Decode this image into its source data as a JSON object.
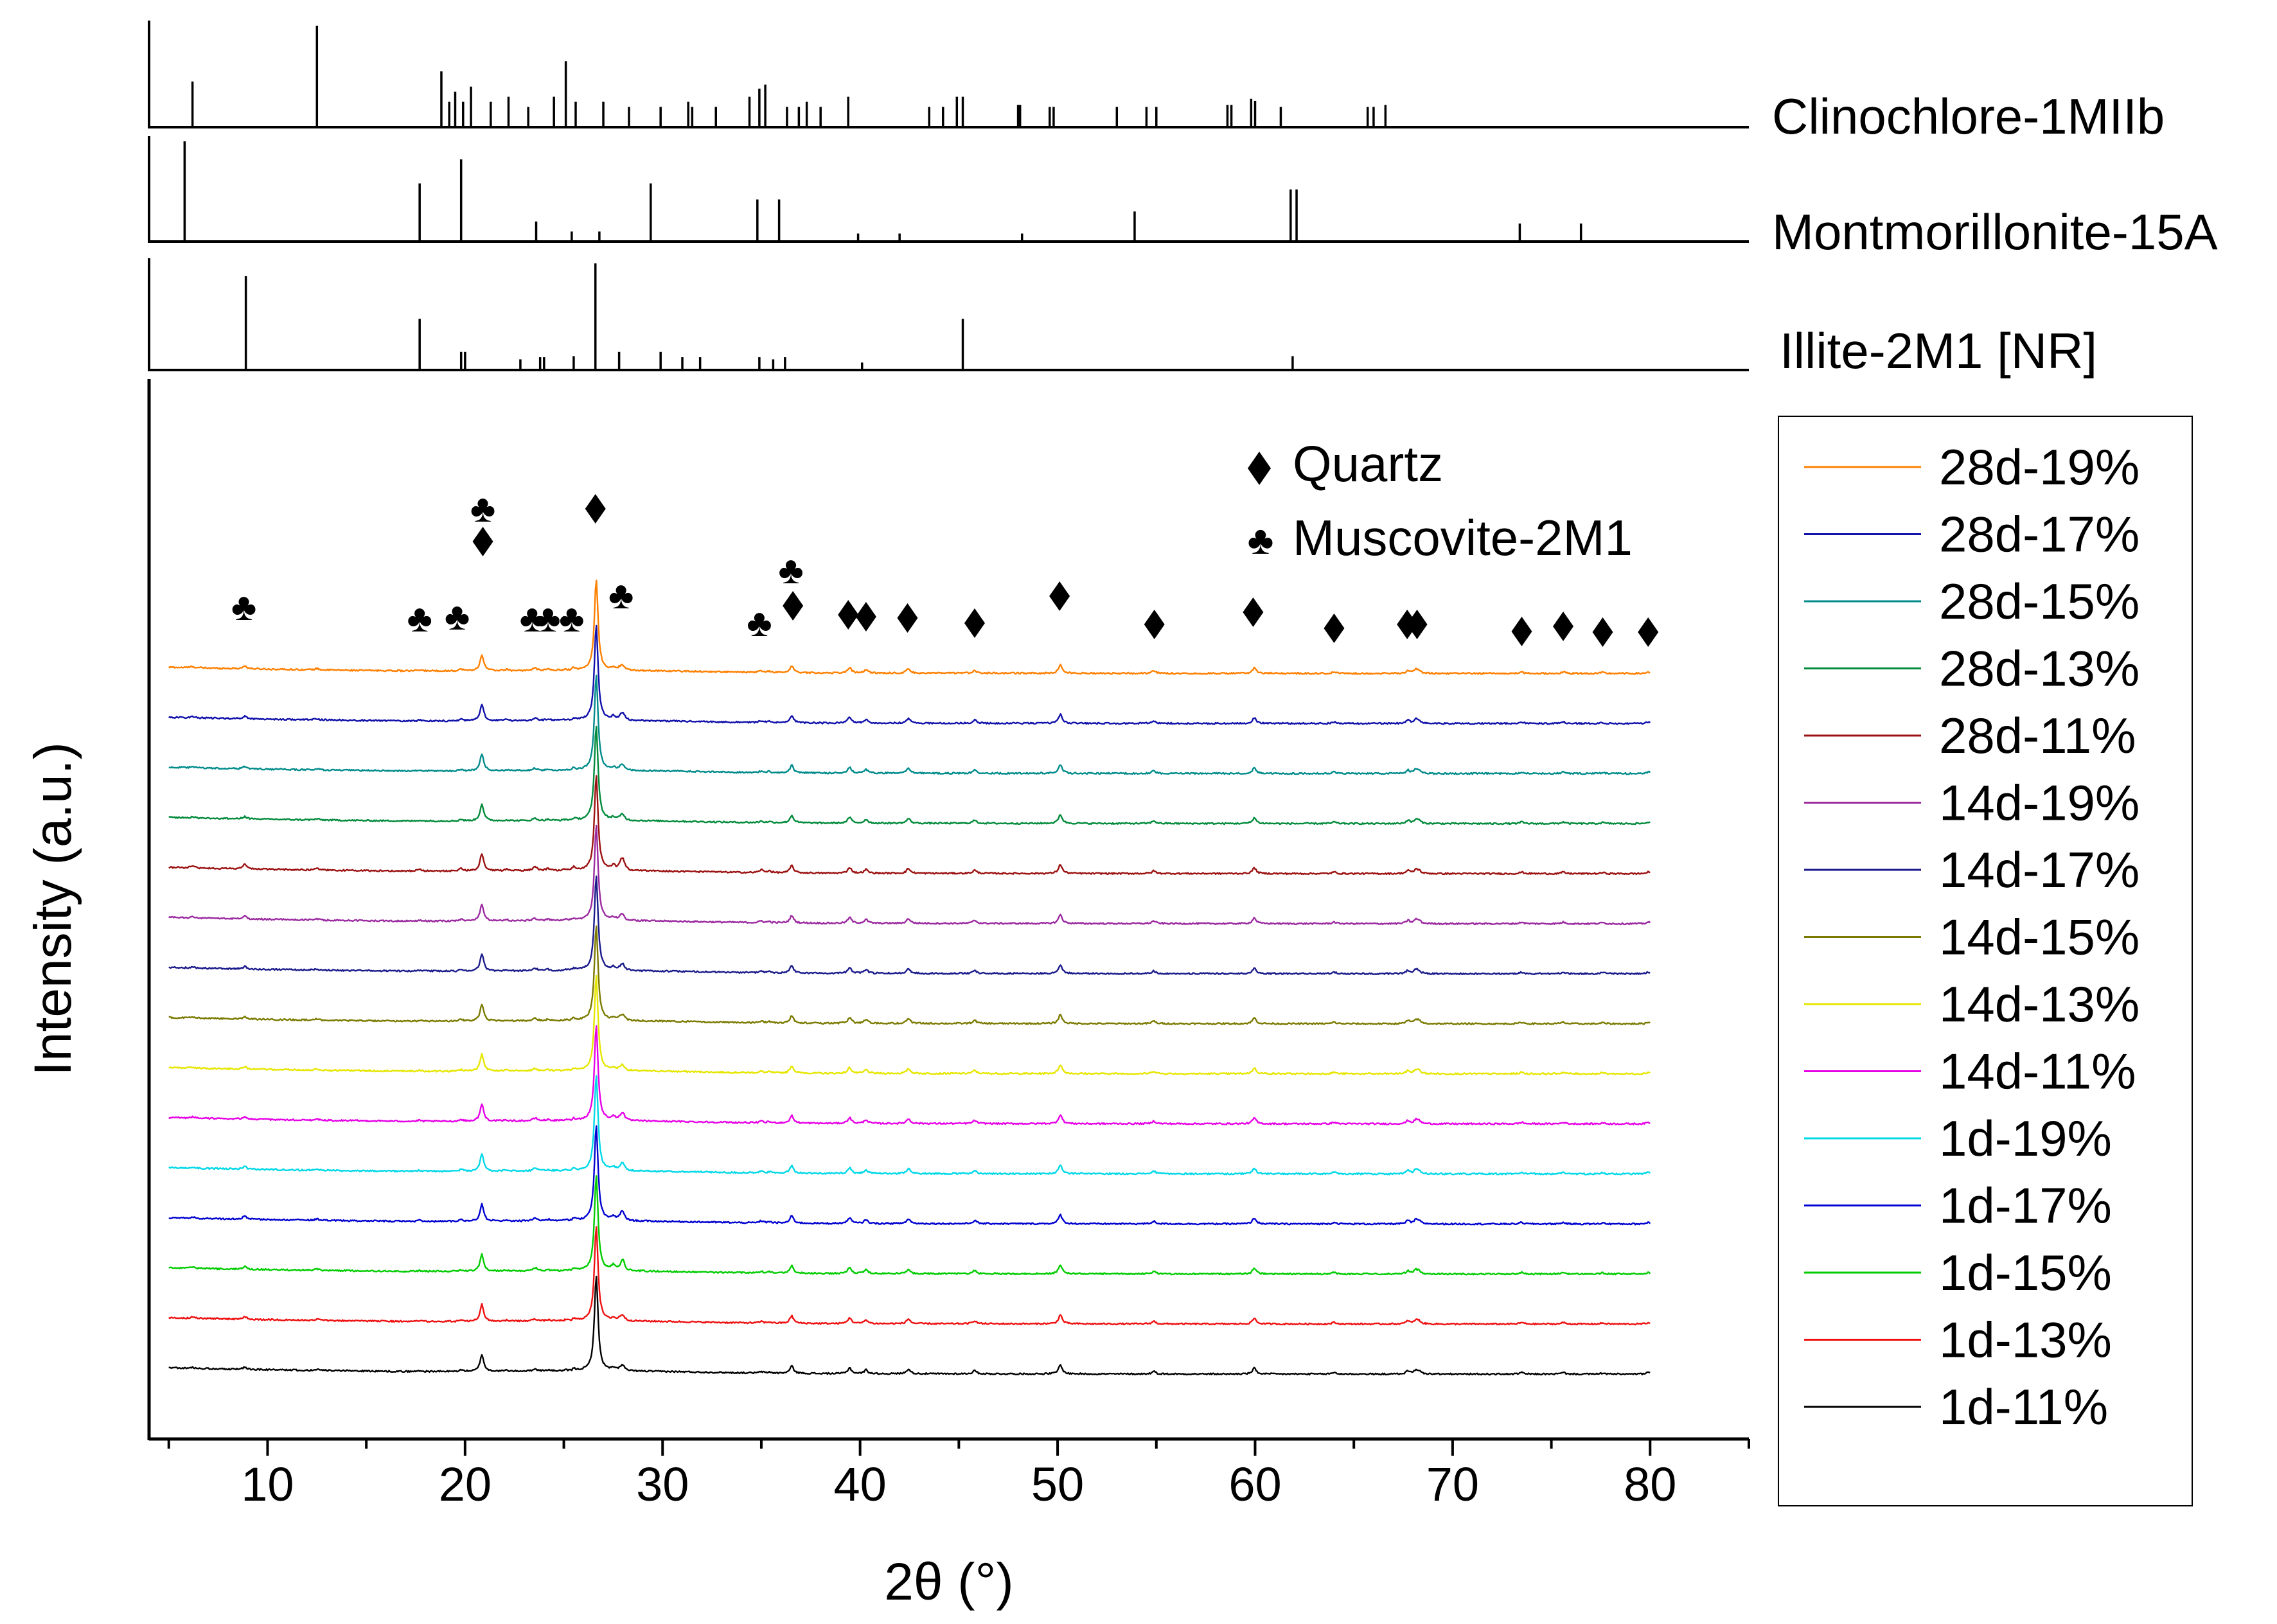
{
  "chart_data": {
    "type": "line",
    "title": "",
    "xlabel": "2θ (°)",
    "ylabel": "Intensity (a.u.)",
    "xlim": [
      4,
      85
    ],
    "x_ticks": [
      10,
      20,
      30,
      40,
      50,
      60,
      70,
      80
    ],
    "y_ticks": [],
    "grid": false,
    "legend_position": "right",
    "reference_patterns": [
      {
        "name": "Clinochlore-1MIIb",
        "peaks": [
          [
            6.2,
            0.45
          ],
          [
            12.5,
            1.0
          ],
          [
            18.8,
            0.55
          ],
          [
            19.2,
            0.25
          ],
          [
            19.5,
            0.35
          ],
          [
            19.9,
            0.25
          ],
          [
            20.3,
            0.4
          ],
          [
            21.3,
            0.25
          ],
          [
            22.2,
            0.3
          ],
          [
            23.2,
            0.2
          ],
          [
            24.5,
            0.3
          ],
          [
            25.1,
            0.65
          ],
          [
            25.6,
            0.25
          ],
          [
            27.0,
            0.25
          ],
          [
            28.3,
            0.2
          ],
          [
            29.9,
            0.2
          ],
          [
            31.3,
            0.25
          ],
          [
            31.5,
            0.2
          ],
          [
            32.7,
            0.2
          ],
          [
            34.4,
            0.3
          ],
          [
            34.9,
            0.38
          ],
          [
            35.2,
            0.42
          ],
          [
            36.3,
            0.2
          ],
          [
            36.9,
            0.2
          ],
          [
            37.3,
            0.25
          ],
          [
            38.0,
            0.2
          ],
          [
            39.4,
            0.3
          ],
          [
            43.5,
            0.2
          ],
          [
            44.2,
            0.2
          ],
          [
            44.9,
            0.3
          ],
          [
            45.2,
            0.3
          ],
          [
            48.0,
            0.22
          ],
          [
            48.1,
            0.22
          ],
          [
            49.6,
            0.2
          ],
          [
            49.8,
            0.2
          ],
          [
            53.0,
            0.2
          ],
          [
            54.5,
            0.2
          ],
          [
            55.0,
            0.2
          ],
          [
            58.6,
            0.22
          ],
          [
            58.8,
            0.22
          ],
          [
            59.8,
            0.28
          ],
          [
            60.0,
            0.26
          ],
          [
            61.3,
            0.2
          ],
          [
            65.7,
            0.2
          ],
          [
            66.0,
            0.2
          ],
          [
            66.6,
            0.22
          ]
        ]
      },
      {
        "name": "Montmorillonite-15A",
        "peaks": [
          [
            5.8,
            1.0
          ],
          [
            17.7,
            0.58
          ],
          [
            19.8,
            0.82
          ],
          [
            23.6,
            0.2
          ],
          [
            25.4,
            0.1
          ],
          [
            26.8,
            0.1
          ],
          [
            29.4,
            0.58
          ],
          [
            34.8,
            0.42
          ],
          [
            35.9,
            0.42
          ],
          [
            39.9,
            0.08
          ],
          [
            42.0,
            0.08
          ],
          [
            48.2,
            0.08
          ],
          [
            53.9,
            0.3
          ],
          [
            61.8,
            0.52
          ],
          [
            62.1,
            0.52
          ],
          [
            73.4,
            0.18
          ],
          [
            76.5,
            0.18
          ]
        ]
      },
      {
        "name": "Illite-2M1 [NR]",
        "peaks": [
          [
            8.9,
            0.88
          ],
          [
            17.7,
            0.48
          ],
          [
            19.8,
            0.17
          ],
          [
            20.0,
            0.17
          ],
          [
            22.8,
            0.1
          ],
          [
            23.8,
            0.12
          ],
          [
            24.0,
            0.12
          ],
          [
            25.5,
            0.13
          ],
          [
            26.6,
            1.0
          ],
          [
            27.8,
            0.17
          ],
          [
            29.9,
            0.17
          ],
          [
            31.0,
            0.12
          ],
          [
            31.9,
            0.12
          ],
          [
            34.9,
            0.12
          ],
          [
            35.6,
            0.1
          ],
          [
            36.2,
            0.12
          ],
          [
            40.1,
            0.07
          ],
          [
            45.2,
            0.48
          ],
          [
            61.9,
            0.13
          ]
        ]
      }
    ],
    "annotations": {
      "quartz_label": "Quartz",
      "muscovite_label": "Muscovite-2M1",
      "quartz_peaks_2theta": [
        20.9,
        26.6,
        36.6,
        39.4,
        40.3,
        42.4,
        45.8,
        50.1,
        54.9,
        59.9,
        64.0,
        67.7,
        68.2,
        73.5,
        75.6,
        77.6,
        79.9
      ],
      "muscovite_peaks_2theta": [
        8.8,
        17.7,
        19.6,
        20.9,
        23.4,
        24.2,
        25.4,
        27.9,
        34.9,
        36.5
      ]
    },
    "phase_peaks": {
      "quartz": [
        [
          20.85,
          0.32
        ],
        [
          26.64,
          1.8
        ],
        [
          36.54,
          0.14
        ],
        [
          39.47,
          0.11
        ],
        [
          40.3,
          0.07
        ],
        [
          42.45,
          0.09
        ],
        [
          45.8,
          0.06
        ],
        [
          50.14,
          0.17
        ],
        [
          54.87,
          0.05
        ],
        [
          59.96,
          0.11
        ],
        [
          64.0,
          0.03
        ],
        [
          67.74,
          0.06
        ],
        [
          68.14,
          0.07
        ],
        [
          68.3,
          0.05
        ],
        [
          73.5,
          0.03
        ],
        [
          75.6,
          0.03
        ],
        [
          77.6,
          0.02
        ],
        [
          79.9,
          0.03
        ]
      ],
      "muscovite": [
        [
          8.85,
          0.05
        ],
        [
          17.7,
          0.02
        ],
        [
          19.8,
          0.03
        ],
        [
          22.1,
          0.02
        ],
        [
          23.5,
          0.03
        ],
        [
          24.2,
          0.02
        ],
        [
          25.5,
          0.03
        ],
        [
          27.9,
          0.07
        ],
        [
          35.0,
          0.03
        ],
        [
          35.4,
          0.02
        ]
      ],
      "feldspar": [
        [
          27.5,
          0.05
        ],
        [
          28.0,
          0.09
        ],
        [
          23.6,
          0.02
        ]
      ],
      "chlorite": [
        [
          6.2,
          0.03
        ],
        [
          12.5,
          0.03
        ],
        [
          25.1,
          0.02
        ]
      ]
    },
    "series": [
      {
        "name": "28d-19%",
        "color": "#ff7f00",
        "offset": 13.8,
        "weights": {
          "quartz": 0.95,
          "muscovite": 1.1,
          "feldspar": 0.6,
          "chlorite": 0.8
        }
      },
      {
        "name": "28d-17%",
        "color": "#1010aa",
        "offset": 12.85,
        "weights": {
          "quartz": 1.0,
          "muscovite": 1.0,
          "feldspar": 1.2,
          "chlorite": 0.8
        }
      },
      {
        "name": "28d-15%",
        "color": "#008b8b",
        "offset": 11.9,
        "weights": {
          "quartz": 1.0,
          "muscovite": 0.9,
          "feldspar": 0.9,
          "chlorite": 0.7
        }
      },
      {
        "name": "28d-13%",
        "color": "#008a3a",
        "offset": 10.95,
        "weights": {
          "quartz": 1.0,
          "muscovite": 0.9,
          "feldspar": 0.9,
          "chlorite": 0.7
        }
      },
      {
        "name": "28d-11%",
        "color": "#9b1010",
        "offset": 10.0,
        "weights": {
          "quartz": 1.0,
          "muscovite": 1.8,
          "feldspar": 1.7,
          "chlorite": 1.4
        }
      },
      {
        "name": "14d-19%",
        "color": "#9b2aa0",
        "offset": 9.05,
        "weights": {
          "quartz": 1.0,
          "muscovite": 1.1,
          "feldspar": 0.8,
          "chlorite": 0.8
        }
      },
      {
        "name": "14d-17%",
        "color": "#1a1a8b",
        "offset": 8.1,
        "weights": {
          "quartz": 1.0,
          "muscovite": 1.0,
          "feldspar": 1.0,
          "chlorite": 0.7
        }
      },
      {
        "name": "14d-15%",
        "color": "#7a7a00",
        "offset": 7.15,
        "weights": {
          "quartz": 1.0,
          "muscovite": 1.0,
          "feldspar": 0.8,
          "chlorite": 0.7
        }
      },
      {
        "name": "14d-13%",
        "color": "#e6e600",
        "offset": 6.2,
        "weights": {
          "quartz": 1.0,
          "muscovite": 0.9,
          "feldspar": 0.8,
          "chlorite": 0.7
        }
      },
      {
        "name": "14d-11%",
        "color": "#e600e6",
        "offset": 5.25,
        "weights": {
          "quartz": 1.0,
          "muscovite": 1.0,
          "feldspar": 1.3,
          "chlorite": 0.8
        }
      },
      {
        "name": "1d-19%",
        "color": "#00d8e8",
        "offset": 4.3,
        "weights": {
          "quartz": 1.0,
          "muscovite": 1.0,
          "feldspar": 1.1,
          "chlorite": 0.8
        }
      },
      {
        "name": "1d-17%",
        "color": "#0000d0",
        "offset": 3.35,
        "weights": {
          "quartz": 1.0,
          "muscovite": 1.3,
          "feldspar": 1.4,
          "chlorite": 0.9
        }
      },
      {
        "name": "1d-15%",
        "color": "#00cc00",
        "offset": 2.4,
        "weights": {
          "quartz": 1.0,
          "muscovite": 1.0,
          "feldspar": 1.8,
          "chlorite": 0.8
        }
      },
      {
        "name": "1d-13%",
        "color": "#ee1010",
        "offset": 1.45,
        "weights": {
          "quartz": 1.0,
          "muscovite": 1.0,
          "feldspar": 0.8,
          "chlorite": 0.8
        }
      },
      {
        "name": "1d-11%",
        "color": "#000000",
        "offset": 0.5,
        "weights": {
          "quartz": 1.0,
          "muscovite": 0.9,
          "feldspar": 0.8,
          "chlorite": 0.6
        }
      }
    ]
  }
}
